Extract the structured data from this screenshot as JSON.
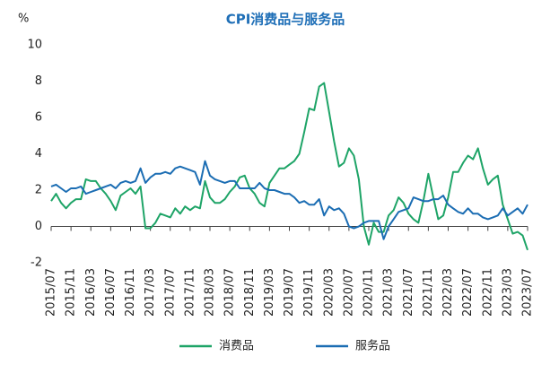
{
  "chart_data": {
    "type": "line",
    "title": "CPI消费品与服务品",
    "y_label": "%",
    "categories": [
      "2015/07",
      null,
      null,
      null,
      "2015/11",
      null,
      null,
      null,
      "2016/03",
      null,
      null,
      null,
      "2016/07",
      null,
      null,
      null,
      "2016/11",
      null,
      null,
      null,
      "2017/03",
      null,
      null,
      null,
      "2017/07",
      null,
      null,
      null,
      "2017/11",
      null,
      null,
      null,
      "2018/03",
      null,
      null,
      null,
      "2018/07",
      null,
      null,
      null,
      "2018/11",
      null,
      null,
      null,
      "2019/03",
      null,
      null,
      null,
      "2019/07",
      null,
      null,
      null,
      "2019/11",
      null,
      null,
      null,
      "2020/03",
      null,
      null,
      null,
      "2020/07",
      null,
      null,
      null,
      "2020/11",
      null,
      null,
      null,
      "2021/03",
      null,
      null,
      null,
      "2021/07",
      null,
      null,
      null,
      "2021/11",
      null,
      null,
      null,
      "2022/03",
      null,
      null,
      null,
      "2022/07",
      null,
      null,
      null,
      "2022/11",
      null,
      null,
      null,
      "2023/03",
      null,
      null,
      null,
      "2023/07"
    ],
    "series": [
      {
        "name": "消费品",
        "color": "#1ea467",
        "values": [
          1.4,
          1.8,
          1.3,
          1.0,
          1.3,
          1.5,
          1.5,
          2.6,
          2.5,
          2.5,
          2.1,
          1.8,
          1.4,
          0.9,
          1.7,
          1.9,
          2.1,
          1.8,
          2.2,
          -0.1,
          -0.1,
          0.2,
          0.7,
          0.6,
          0.5,
          1.0,
          0.7,
          1.1,
          0.9,
          1.1,
          1.0,
          2.5,
          1.6,
          1.3,
          1.3,
          1.5,
          1.9,
          2.2,
          2.7,
          2.8,
          2.1,
          1.8,
          1.3,
          1.1,
          2.4,
          2.8,
          3.2,
          3.2,
          3.4,
          3.6,
          4.0,
          5.2,
          6.5,
          6.4,
          7.7,
          7.9,
          6.3,
          4.7,
          3.3,
          3.5,
          4.3,
          3.9,
          2.6,
          0.0,
          -1.0,
          0.2,
          -0.3,
          -0.3,
          0.6,
          0.9,
          1.6,
          1.3,
          0.7,
          0.4,
          0.2,
          1.4,
          2.9,
          1.6,
          0.4,
          0.6,
          1.6,
          3.0,
          3.0,
          3.5,
          3.9,
          3.7,
          4.3,
          3.2,
          2.3,
          2.6,
          2.8,
          1.2,
          0.4,
          -0.4,
          -0.3,
          -0.5,
          -1.3
        ]
      },
      {
        "name": "服务品",
        "color": "#1b6db3",
        "values": [
          2.2,
          2.3,
          2.1,
          1.9,
          2.1,
          2.1,
          2.2,
          1.8,
          1.9,
          2.0,
          2.1,
          2.2,
          2.3,
          2.1,
          2.4,
          2.5,
          2.4,
          2.5,
          3.2,
          2.4,
          2.7,
          2.9,
          2.9,
          3.0,
          2.9,
          3.2,
          3.3,
          3.2,
          3.1,
          3.0,
          2.3,
          3.6,
          2.8,
          2.6,
          2.5,
          2.4,
          2.5,
          2.5,
          2.1,
          2.1,
          2.1,
          2.1,
          2.4,
          2.1,
          2.0,
          2.0,
          1.9,
          1.8,
          1.8,
          1.6,
          1.3,
          1.4,
          1.2,
          1.2,
          1.5,
          0.6,
          1.1,
          0.9,
          1.0,
          0.7,
          0.0,
          -0.1,
          0.0,
          0.2,
          0.3,
          0.3,
          0.3,
          -0.7,
          0.0,
          0.4,
          0.8,
          0.9,
          1.0,
          1.6,
          1.5,
          1.4,
          1.4,
          1.5,
          1.5,
          1.7,
          1.2,
          1.0,
          0.8,
          0.7,
          1.0,
          0.7,
          0.7,
          0.5,
          0.4,
          0.5,
          0.6,
          1.0,
          0.6,
          0.8,
          1.0,
          0.7,
          1.2
        ]
      }
    ],
    "ylim": [
      -2,
      10
    ],
    "yticks": [
      -2,
      0,
      2,
      4,
      6,
      8,
      10
    ]
  }
}
